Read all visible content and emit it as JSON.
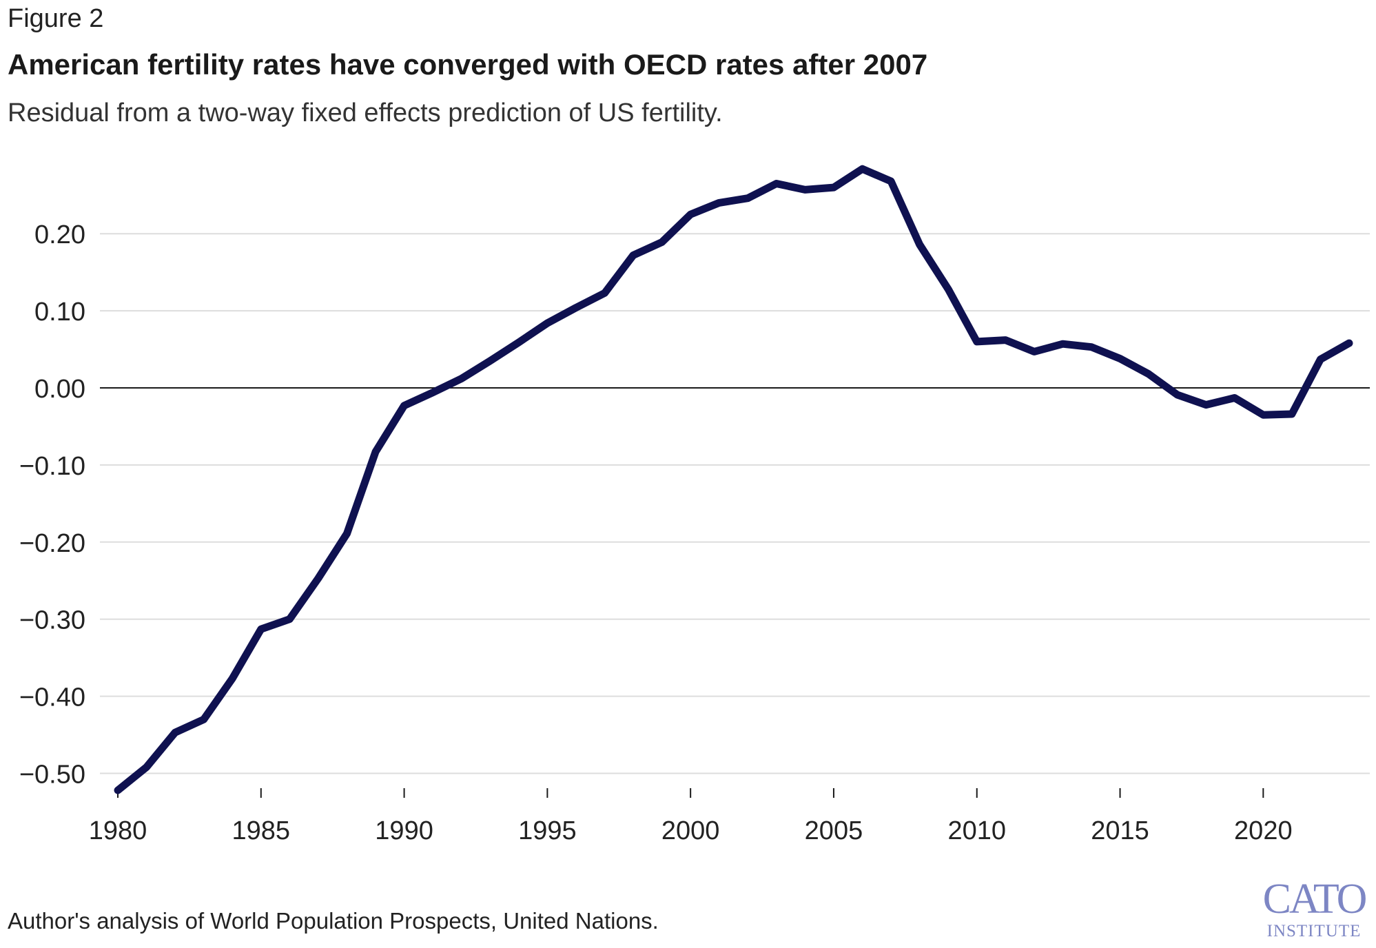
{
  "figure_label": "Figure 2",
  "source": "Author's analysis of World Population Prospects, United Nations.",
  "logo": {
    "main": "CATO",
    "sub": "INSTITUTE"
  },
  "colors": {
    "line": "#0f1150",
    "grid": "#dddddd",
    "zero": "#1a1a1a",
    "text": "#222222",
    "logo": "#7d86c4"
  },
  "chart_data": {
    "type": "line",
    "title": "American fertility rates have converged with OECD rates after 2007",
    "subtitle": "Residual from a two-way fixed effects prediction of US fertility.",
    "xlabel": "",
    "ylabel": "",
    "xlim": [
      1980,
      2023
    ],
    "ylim": [
      -0.52,
      0.28
    ],
    "x_ticks": [
      1980,
      1985,
      1990,
      1995,
      2000,
      2005,
      2010,
      2015,
      2020
    ],
    "x_tick_labels": [
      "1980",
      "1985",
      "1990",
      "1995",
      "2000",
      "2005",
      "2010",
      "2015",
      "2020"
    ],
    "y_ticks": [
      0.2,
      0.1,
      0.0,
      -0.1,
      -0.2,
      -0.3,
      -0.4,
      -0.5
    ],
    "y_tick_labels": [
      "0.20",
      "0.10",
      "0.00",
      "−0.10",
      "−0.20",
      "−0.30",
      "−0.40",
      "−0.50"
    ],
    "grid": true,
    "legend": "none",
    "series": [
      {
        "x": [
          1980,
          1981,
          1982,
          1983,
          1984,
          1985,
          1986,
          1987,
          1988,
          1989,
          1990,
          1991,
          1992,
          1993,
          1994,
          1995,
          1996,
          1997,
          1998,
          1999,
          2000,
          2001,
          2002,
          2003,
          2004,
          2005,
          2006,
          2007,
          2008,
          2009,
          2010,
          2011,
          2012,
          2013,
          2014,
          2015,
          2016,
          2017,
          2018,
          2019,
          2020,
          2021,
          2022,
          2023
        ],
        "values": [
          -0.522,
          -0.492,
          -0.447,
          -0.43,
          -0.377,
          -0.313,
          -0.3,
          -0.247,
          -0.189,
          -0.083,
          -0.023,
          -0.006,
          0.012,
          0.035,
          0.059,
          0.084,
          0.104,
          0.123,
          0.172,
          0.189,
          0.225,
          0.24,
          0.246,
          0.265,
          0.257,
          0.26,
          0.284,
          0.268,
          0.186,
          0.128,
          0.06,
          0.062,
          0.047,
          0.057,
          0.053,
          0.038,
          0.018,
          -0.009,
          -0.022,
          -0.013,
          -0.035,
          -0.034,
          0.037,
          0.058
        ]
      }
    ]
  }
}
